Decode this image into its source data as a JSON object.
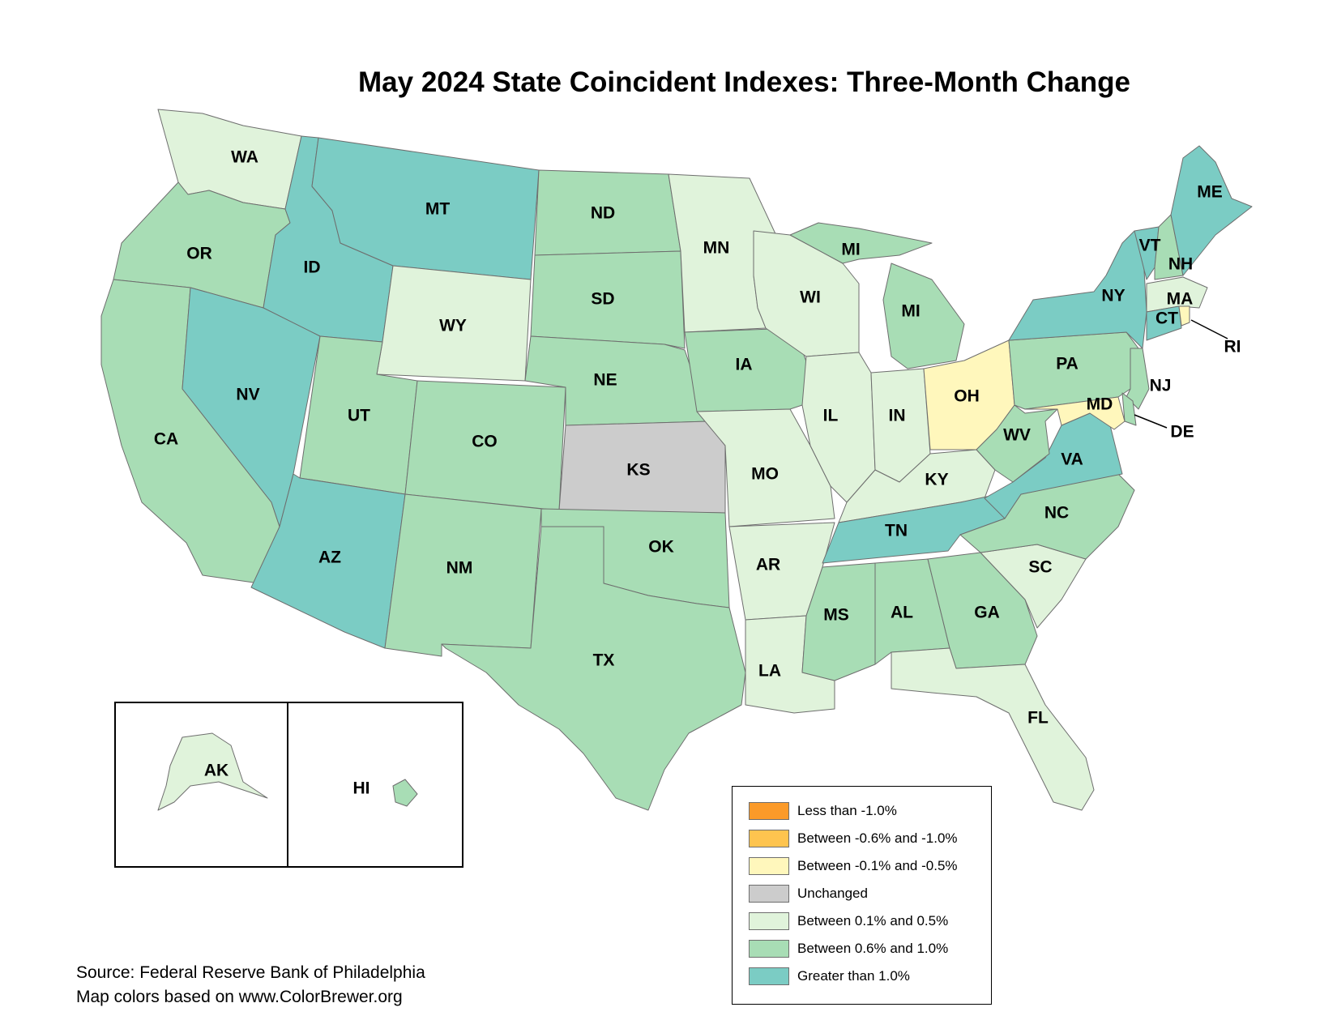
{
  "title": "May 2024 State Coincident Indexes: Three-Month Change",
  "colors": {
    "less_than_-1.0": "#fb9a29",
    "between_-0.6_-1.0": "#fec44f",
    "between_-0.1_-0.5": "#fff7bc",
    "unchanged": "#cccccc",
    "between_0.1_0.5": "#e0f3db",
    "between_0.6_1.0": "#a8ddb5",
    "greater_than_1.0": "#7bccc4"
  },
  "legend": [
    {
      "label": "Less than -1.0%",
      "class": "less_than_-1.0"
    },
    {
      "label": "Between -0.6% and -1.0%",
      "class": "between_-0.6_-1.0"
    },
    {
      "label": "Between -0.1% and -0.5%",
      "class": "between_-0.1_-0.5"
    },
    {
      "label": "Unchanged",
      "class": "unchanged"
    },
    {
      "label": "Between 0.1% and 0.5%",
      "class": "between_0.1_0.5"
    },
    {
      "label": "Between 0.6% and 1.0%",
      "class": "between_0.6_1.0"
    },
    {
      "label": "Greater than 1.0%",
      "class": "greater_than_1.0"
    }
  ],
  "states": {
    "WA": {
      "label": "WA",
      "class": "between_0.1_0.5"
    },
    "OR": {
      "label": "OR",
      "class": "between_0.6_1.0"
    },
    "CA": {
      "label": "CA",
      "class": "between_0.6_1.0"
    },
    "ID": {
      "label": "ID",
      "class": "greater_than_1.0"
    },
    "NV": {
      "label": "NV",
      "class": "greater_than_1.0"
    },
    "MT": {
      "label": "MT",
      "class": "greater_than_1.0"
    },
    "WY": {
      "label": "WY",
      "class": "between_0.1_0.5"
    },
    "UT": {
      "label": "UT",
      "class": "between_0.6_1.0"
    },
    "AZ": {
      "label": "AZ",
      "class": "greater_than_1.0"
    },
    "CO": {
      "label": "CO",
      "class": "between_0.6_1.0"
    },
    "NM": {
      "label": "NM",
      "class": "between_0.6_1.0"
    },
    "ND": {
      "label": "ND",
      "class": "between_0.6_1.0"
    },
    "SD": {
      "label": "SD",
      "class": "between_0.6_1.0"
    },
    "NE": {
      "label": "NE",
      "class": "between_0.6_1.0"
    },
    "KS": {
      "label": "KS",
      "class": "unchanged"
    },
    "OK": {
      "label": "OK",
      "class": "between_0.6_1.0"
    },
    "TX": {
      "label": "TX",
      "class": "between_0.6_1.0"
    },
    "MN": {
      "label": "MN",
      "class": "between_0.1_0.5"
    },
    "IA": {
      "label": "IA",
      "class": "between_0.6_1.0"
    },
    "MO": {
      "label": "MO",
      "class": "between_0.1_0.5"
    },
    "AR": {
      "label": "AR",
      "class": "between_0.1_0.5"
    },
    "LA": {
      "label": "LA",
      "class": "between_0.1_0.5"
    },
    "WI": {
      "label": "WI",
      "class": "between_0.1_0.5"
    },
    "IL": {
      "label": "IL",
      "class": "between_0.1_0.5"
    },
    "MI_UP": {
      "label": "MI",
      "class": "between_0.6_1.0"
    },
    "MI": {
      "label": "MI",
      "class": "between_0.6_1.0"
    },
    "IN": {
      "label": "IN",
      "class": "between_0.1_0.5"
    },
    "OH": {
      "label": "OH",
      "class": "between_-0.1_-0.5"
    },
    "KY": {
      "label": "KY",
      "class": "between_0.1_0.5"
    },
    "TN": {
      "label": "TN",
      "class": "greater_than_1.0"
    },
    "MS": {
      "label": "MS",
      "class": "between_0.6_1.0"
    },
    "AL": {
      "label": "AL",
      "class": "between_0.6_1.0"
    },
    "GA": {
      "label": "GA",
      "class": "between_0.6_1.0"
    },
    "FL": {
      "label": "FL",
      "class": "between_0.1_0.5"
    },
    "SC": {
      "label": "SC",
      "class": "between_0.1_0.5"
    },
    "NC": {
      "label": "NC",
      "class": "between_0.6_1.0"
    },
    "VA": {
      "label": "VA",
      "class": "greater_than_1.0"
    },
    "WV": {
      "label": "WV",
      "class": "between_0.6_1.0"
    },
    "PA": {
      "label": "PA",
      "class": "between_0.6_1.0"
    },
    "NY": {
      "label": "NY",
      "class": "greater_than_1.0"
    },
    "NJ": {
      "label": "NJ",
      "class": "between_0.6_1.0"
    },
    "DE": {
      "label": "DE",
      "class": "between_0.6_1.0"
    },
    "MD": {
      "label": "MD",
      "class": "between_-0.1_-0.5"
    },
    "VT": {
      "label": "VT",
      "class": "greater_than_1.0"
    },
    "NH": {
      "label": "NH",
      "class": "between_0.6_1.0"
    },
    "ME": {
      "label": "ME",
      "class": "greater_than_1.0"
    },
    "MA": {
      "label": "MA",
      "class": "between_0.1_0.5"
    },
    "CT": {
      "label": "CT",
      "class": "greater_than_1.0"
    },
    "RI": {
      "label": "RI",
      "class": "between_-0.1_-0.5"
    },
    "AK": {
      "label": "AK",
      "class": "between_0.1_0.5"
    },
    "HI": {
      "label": "HI",
      "class": "between_0.6_1.0"
    }
  },
  "source": {
    "line1": "Source: Federal Reserve Bank of Philadelphia",
    "line2": "Map colors based on www.ColorBrewer.org"
  }
}
